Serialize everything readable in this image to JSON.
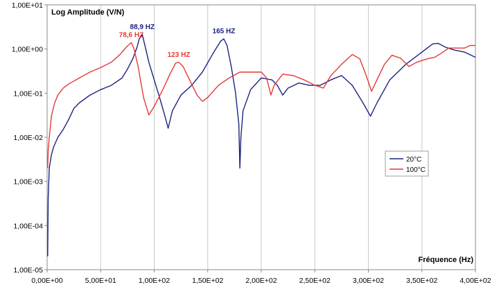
{
  "chart_data": {
    "type": "line",
    "ylabel": "Log Amplitude (V/N)",
    "xlabel": "Fréquence (Hz)",
    "xlim": [
      0,
      400
    ],
    "ylim": [
      1e-05,
      10
    ],
    "yscale": "log",
    "x_ticks": [
      0,
      50,
      100,
      150,
      200,
      250,
      300,
      350,
      400
    ],
    "x_tick_labels": [
      "0,00E+00",
      "5,00E+01",
      "1,00E+02",
      "1,50E+02",
      "2,00E+02",
      "2,50E+02",
      "3,00E+02",
      "3,50E+02",
      "4,00E+02"
    ],
    "y_ticks": [
      1e-05,
      0.0001,
      0.001,
      0.01,
      0.1,
      1,
      10
    ],
    "y_tick_labels": [
      "1,00E-05",
      "1,00E-04",
      "1,00E-03",
      "1,00E-02",
      "1,00E-01",
      "1,00E+00",
      "1,00E+01"
    ],
    "grid": "vertical",
    "legend_position": "right",
    "series": [
      {
        "name": "20°C",
        "color": "#1a237e",
        "points": [
          [
            0.5,
            2e-05
          ],
          [
            1,
            0.0004
          ],
          [
            2,
            0.002
          ],
          [
            4,
            0.004
          ],
          [
            6,
            0.006
          ],
          [
            10,
            0.01
          ],
          [
            15,
            0.015
          ],
          [
            20,
            0.025
          ],
          [
            25,
            0.045
          ],
          [
            30,
            0.06
          ],
          [
            40,
            0.09
          ],
          [
            50,
            0.12
          ],
          [
            60,
            0.15
          ],
          [
            70,
            0.22
          ],
          [
            75,
            0.35
          ],
          [
            80,
            0.6
          ],
          [
            84,
            1.1
          ],
          [
            86,
            1.7
          ],
          [
            88.9,
            2.1
          ],
          [
            91,
            1.3
          ],
          [
            95,
            0.5
          ],
          [
            100,
            0.2
          ],
          [
            105,
            0.08
          ],
          [
            110,
            0.03
          ],
          [
            113,
            0.016
          ],
          [
            117,
            0.04
          ],
          [
            125,
            0.09
          ],
          [
            135,
            0.15
          ],
          [
            145,
            0.3
          ],
          [
            155,
            0.8
          ],
          [
            162,
            1.5
          ],
          [
            165,
            1.7
          ],
          [
            168,
            1.2
          ],
          [
            172,
            0.4
          ],
          [
            176,
            0.1
          ],
          [
            179,
            0.02
          ],
          [
            180,
            0.002
          ],
          [
            181,
            0.01
          ],
          [
            183,
            0.04
          ],
          [
            190,
            0.12
          ],
          [
            200,
            0.22
          ],
          [
            210,
            0.2
          ],
          [
            215,
            0.15
          ],
          [
            220,
            0.09
          ],
          [
            225,
            0.13
          ],
          [
            235,
            0.17
          ],
          [
            245,
            0.15
          ],
          [
            255,
            0.15
          ],
          [
            265,
            0.2
          ],
          [
            275,
            0.25
          ],
          [
            285,
            0.15
          ],
          [
            295,
            0.06
          ],
          [
            302,
            0.03
          ],
          [
            308,
            0.06
          ],
          [
            320,
            0.2
          ],
          [
            335,
            0.45
          ],
          [
            350,
            0.85
          ],
          [
            360,
            1.3
          ],
          [
            365,
            1.35
          ],
          [
            372,
            1.1
          ],
          [
            380,
            0.95
          ],
          [
            390,
            0.85
          ],
          [
            400,
            0.65
          ]
        ]
      },
      {
        "name": "100°C",
        "color": "#e53935",
        "points": [
          [
            0.5,
            0.002
          ],
          [
            1,
            0.005
          ],
          [
            2,
            0.01
          ],
          [
            4,
            0.03
          ],
          [
            7,
            0.06
          ],
          [
            10,
            0.09
          ],
          [
            15,
            0.13
          ],
          [
            20,
            0.16
          ],
          [
            30,
            0.22
          ],
          [
            40,
            0.3
          ],
          [
            50,
            0.38
          ],
          [
            60,
            0.5
          ],
          [
            68,
            0.75
          ],
          [
            74,
            1.1
          ],
          [
            78.6,
            1.4
          ],
          [
            81,
            1.05
          ],
          [
            85,
            0.4
          ],
          [
            90,
            0.08
          ],
          [
            95,
            0.032
          ],
          [
            100,
            0.05
          ],
          [
            108,
            0.12
          ],
          [
            115,
            0.28
          ],
          [
            120,
            0.48
          ],
          [
            123,
            0.5
          ],
          [
            127,
            0.4
          ],
          [
            133,
            0.2
          ],
          [
            140,
            0.09
          ],
          [
            145,
            0.065
          ],
          [
            150,
            0.08
          ],
          [
            160,
            0.15
          ],
          [
            170,
            0.22
          ],
          [
            180,
            0.3
          ],
          [
            190,
            0.3
          ],
          [
            200,
            0.3
          ],
          [
            205,
            0.22
          ],
          [
            209,
            0.09
          ],
          [
            212,
            0.15
          ],
          [
            220,
            0.27
          ],
          [
            230,
            0.25
          ],
          [
            240,
            0.2
          ],
          [
            250,
            0.15
          ],
          [
            258,
            0.13
          ],
          [
            265,
            0.25
          ],
          [
            275,
            0.45
          ],
          [
            285,
            0.75
          ],
          [
            292,
            0.6
          ],
          [
            298,
            0.25
          ],
          [
            303,
            0.11
          ],
          [
            308,
            0.2
          ],
          [
            315,
            0.45
          ],
          [
            322,
            0.72
          ],
          [
            330,
            0.62
          ],
          [
            338,
            0.4
          ],
          [
            345,
            0.5
          ],
          [
            355,
            0.6
          ],
          [
            362,
            0.65
          ],
          [
            368,
            0.8
          ],
          [
            375,
            1.05
          ],
          [
            383,
            1.05
          ],
          [
            390,
            1.05
          ],
          [
            395,
            1.2
          ],
          [
            400,
            1.2
          ]
        ]
      }
    ],
    "annotations": [
      {
        "text": "88,9 HZ",
        "x": 88.9,
        "color": "#1a237e"
      },
      {
        "text": "78,6 HZ",
        "x": 78.6,
        "color": "#e53935"
      },
      {
        "text": "123 HZ",
        "x": 123,
        "color": "#e53935"
      },
      {
        "text": "165 HZ",
        "x": 165,
        "color": "#1a237e"
      }
    ]
  }
}
